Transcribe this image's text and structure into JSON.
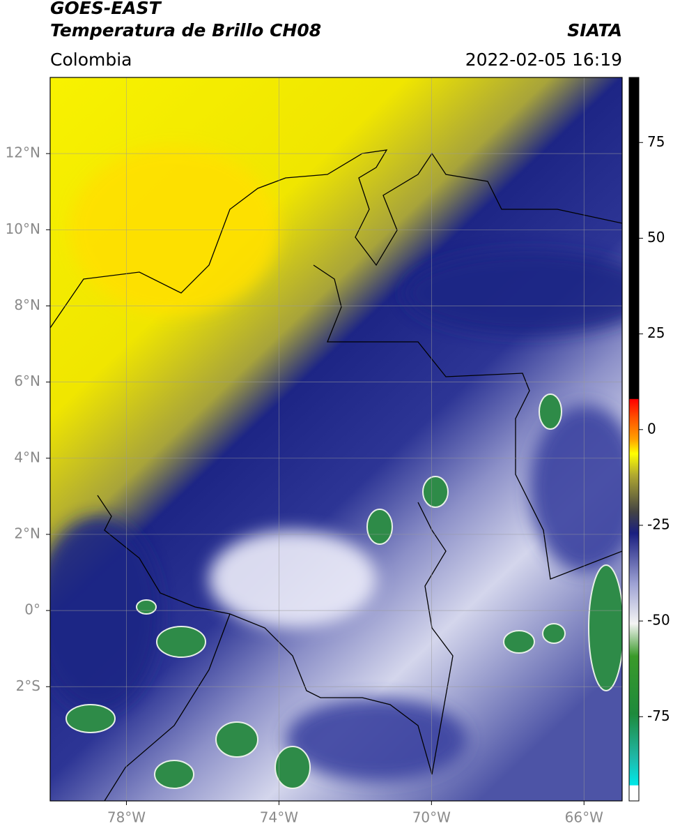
{
  "header": {
    "title": "GOES-EAST",
    "subtitle": "Temperatura de Brillo CH08",
    "source": "SIATA",
    "region": "Colombia",
    "datetime": "2022-02-05 16:19"
  },
  "map": {
    "xlim": [
      -80,
      -65
    ],
    "ylim": [
      -5,
      14
    ],
    "xticks": [
      {
        "value": -78,
        "label": "78°W"
      },
      {
        "value": -74,
        "label": "74°W"
      },
      {
        "value": -70,
        "label": "70°W"
      },
      {
        "value": -66,
        "label": "66°W"
      }
    ],
    "yticks": [
      {
        "value": 12,
        "label": "12°N"
      },
      {
        "value": 10,
        "label": "10°N"
      },
      {
        "value": 8,
        "label": "8°N"
      },
      {
        "value": 6,
        "label": "6°N"
      },
      {
        "value": 4,
        "label": "4°N"
      },
      {
        "value": 2,
        "label": "2°N"
      },
      {
        "value": 0,
        "label": "0°"
      },
      {
        "value": -2,
        "label": "2°S"
      }
    ]
  },
  "colorbar": {
    "lim": [
      -97,
      92
    ],
    "ticks": [
      75,
      50,
      25,
      0,
      -25,
      -50,
      -75
    ]
  }
}
